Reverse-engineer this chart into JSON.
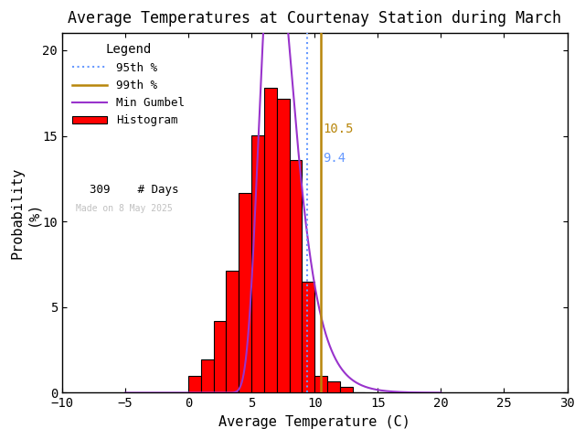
{
  "title": "Average Temperatures at Courtenay Station during March",
  "xlabel": "Average Temperature (C)",
  "ylabel": "Probability\n(%)",
  "xlim": [
    -10,
    30
  ],
  "ylim": [
    0,
    21
  ],
  "xticks": [
    -10,
    -5,
    0,
    5,
    10,
    15,
    20,
    25,
    30
  ],
  "yticks": [
    0,
    5,
    10,
    15,
    20
  ],
  "bin_edges": [
    0,
    1,
    2,
    3,
    4,
    5,
    6,
    7,
    8,
    9,
    10,
    11,
    12,
    13
  ],
  "bin_heights": [
    0.97,
    1.94,
    4.21,
    7.12,
    11.65,
    15.05,
    17.8,
    17.15,
    13.59,
    6.47,
    1.0,
    0.65,
    0.32,
    0.0
  ],
  "bar_color": "#ff0000",
  "bar_edgecolor": "#000000",
  "percentile_95": 9.4,
  "percentile_99": 10.5,
  "percentile_95_color": "#6699ff",
  "percentile_99_color": "#b8860b",
  "gumbel_color": "#9933cc",
  "n_days": 309,
  "made_on_text": "Made on 8 May 2025",
  "made_on_color": "#c0c0c0",
  "legend_title": "Legend",
  "background_color": "#ffffff",
  "gumbel_mu": 6.8,
  "gumbel_beta": 1.35,
  "gumbel_scale_pct": 100.0
}
